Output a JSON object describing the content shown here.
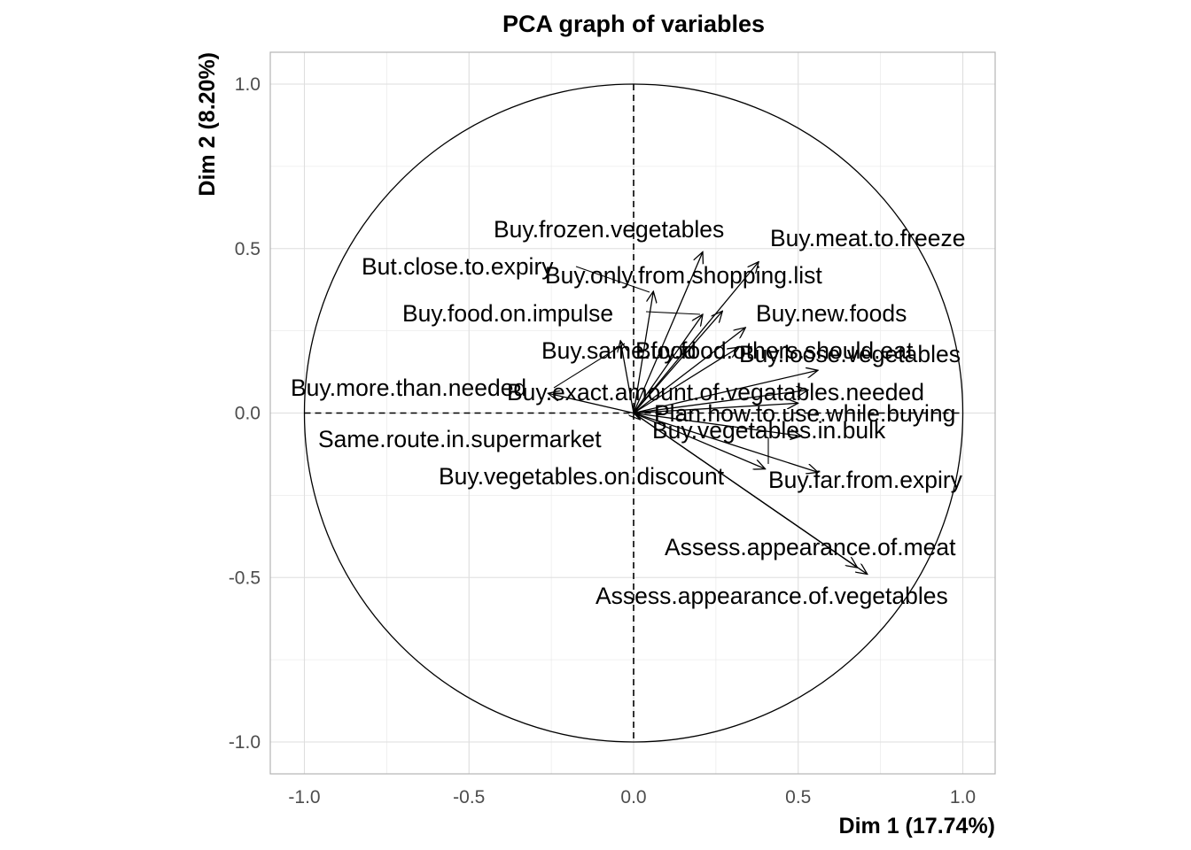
{
  "chart_data": {
    "type": "scatter",
    "subtype": "pca-correlation-circle",
    "title": "PCA graph of variables",
    "xlabel": "Dim 1 (17.74%)",
    "ylabel": "Dim 2 (8.20%)",
    "xlim": [
      -1.1,
      1.1
    ],
    "ylim": [
      -1.1,
      1.1
    ],
    "xticks": [
      "-1.0",
      "-0.5",
      "0.0",
      "0.5",
      "1.0"
    ],
    "yticks": [
      "1.0",
      "0.5",
      "0.0",
      "-0.5",
      "-1.0"
    ],
    "grid": true,
    "unit_circle": true,
    "variables": [
      {
        "name": "Buy.frozen.vegetables",
        "x": 0.21,
        "y": 0.49
      },
      {
        "name": "Buy.meat.to.freeze",
        "x": 0.38,
        "y": 0.46
      },
      {
        "name": "But.close.to.expiry",
        "x": 0.06,
        "y": 0.37
      },
      {
        "name": "Buy.only.from.shopping.list",
        "x": 0.27,
        "y": 0.31
      },
      {
        "name": "Buy.food.on.impulse",
        "x": 0.21,
        "y": 0.3
      },
      {
        "name": "Buy.new.foods",
        "x": 0.34,
        "y": 0.26
      },
      {
        "name": "Buy.same.food",
        "x": -0.04,
        "y": 0.22
      },
      {
        "name": "Buy.food.others.should.eat",
        "x": 0.32,
        "y": 0.2
      },
      {
        "name": "Buy.loose.vegetables",
        "x": 0.56,
        "y": 0.13
      },
      {
        "name": "Buy.more.than.needed",
        "x": -0.26,
        "y": 0.06
      },
      {
        "name": "Buy.exact.amount.of.vegatables.needed",
        "x": 0.53,
        "y": 0.07
      },
      {
        "name": "Plan.how.to.use.while.buying",
        "x": 0.5,
        "y": 0.03
      },
      {
        "name": "Same.route.in.supermarket",
        "x": 0.02,
        "y": -0.02
      },
      {
        "name": "Buy.vegetables.in.bulk",
        "x": 0.51,
        "y": -0.07
      },
      {
        "name": "Buy.vegetables.on.discount",
        "x": 0.4,
        "y": -0.17
      },
      {
        "name": "Buy.far.from.expiry",
        "x": 0.56,
        "y": -0.18
      },
      {
        "name": "Assess.appearance.of.meat",
        "x": 0.68,
        "y": -0.47
      },
      {
        "name": "Assess.appearance.of.vegetables",
        "x": 0.71,
        "y": -0.49
      }
    ]
  }
}
